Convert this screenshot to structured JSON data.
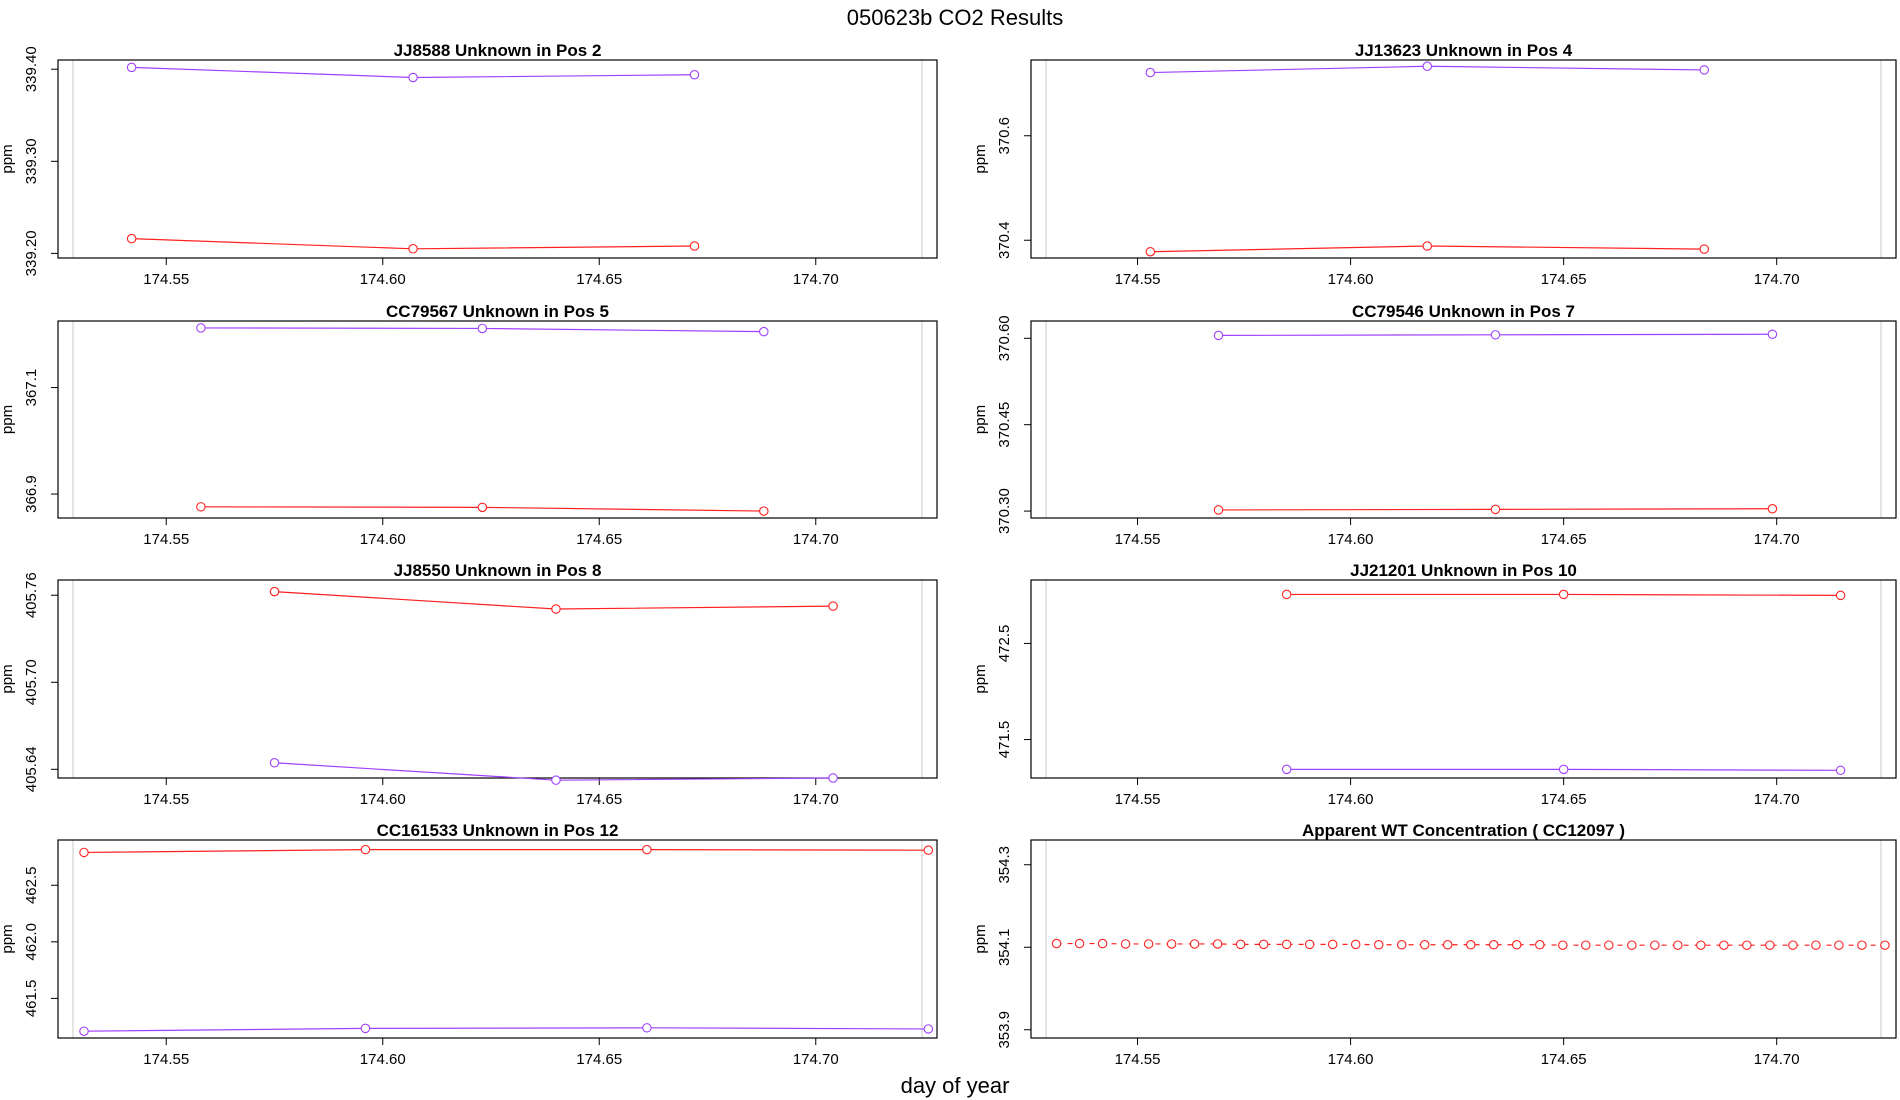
{
  "figure": {
    "title": "050623b  CO2 Results",
    "xlabel": "day of year",
    "colors": {
      "red": "#ff2020",
      "purple": "#a040ff",
      "axis": "#000000",
      "guide": "#c8c8c8"
    }
  },
  "chart_data": [
    {
      "type": "line",
      "title": "JJ8588    Unknown in Pos 2",
      "ylabel": "ppm",
      "xlim": [
        174.525,
        174.728
      ],
      "ylim": [
        339.195,
        339.41
      ],
      "xticks": [
        174.55,
        174.6,
        174.65,
        174.7
      ],
      "xtick_labels": [
        "174.55",
        "174.60",
        "174.65",
        "174.70"
      ],
      "yticks": [
        339.2,
        339.3,
        339.4
      ],
      "ytick_labels": [
        "339.20",
        "339.30",
        "339.40"
      ],
      "series": [
        {
          "color": "purple",
          "x": [
            174.542,
            174.607,
            174.672
          ],
          "y": [
            339.402,
            339.391,
            339.394
          ]
        },
        {
          "color": "red",
          "x": [
            174.542,
            174.607,
            174.672
          ],
          "y": [
            339.216,
            339.205,
            339.208
          ]
        }
      ]
    },
    {
      "type": "line",
      "title": "JJ13623    Unknown in Pos 4",
      "ylabel": "ppm",
      "xlim": [
        174.525,
        174.728
      ],
      "ylim": [
        370.366,
        370.745
      ],
      "xticks": [
        174.55,
        174.6,
        174.65,
        174.7
      ],
      "xtick_labels": [
        "174.55",
        "174.60",
        "174.65",
        "174.70"
      ],
      "yticks": [
        370.4,
        370.6
      ],
      "ytick_labels": [
        "370.4",
        "370.6"
      ],
      "series": [
        {
          "color": "purple",
          "x": [
            174.553,
            174.618,
            174.683
          ],
          "y": [
            370.721,
            370.733,
            370.726
          ]
        },
        {
          "color": "red",
          "x": [
            174.553,
            174.618,
            174.683
          ],
          "y": [
            370.378,
            370.389,
            370.383
          ]
        }
      ]
    },
    {
      "type": "line",
      "title": "CC79567    Unknown in Pos 5",
      "ylabel": "ppm",
      "xlim": [
        174.525,
        174.728
      ],
      "ylim": [
        366.855,
        367.225
      ],
      "xticks": [
        174.55,
        174.6,
        174.65,
        174.7
      ],
      "xtick_labels": [
        "174.55",
        "174.60",
        "174.65",
        "174.70"
      ],
      "yticks": [
        366.9,
        367.1
      ],
      "ytick_labels": [
        "366.9",
        "367.1"
      ],
      "series": [
        {
          "color": "purple",
          "x": [
            174.558,
            174.623,
            174.688
          ],
          "y": [
            367.212,
            367.211,
            367.205
          ]
        },
        {
          "color": "red",
          "x": [
            174.558,
            174.623,
            174.688
          ],
          "y": [
            366.876,
            366.875,
            366.868
          ]
        }
      ]
    },
    {
      "type": "line",
      "title": "CC79546    Unknown in Pos 7",
      "ylabel": "ppm",
      "xlim": [
        174.525,
        174.728
      ],
      "ylim": [
        370.288,
        370.63
      ],
      "xticks": [
        174.55,
        174.6,
        174.65,
        174.7
      ],
      "xtick_labels": [
        "174.55",
        "174.60",
        "174.65",
        "174.70"
      ],
      "yticks": [
        370.3,
        370.45,
        370.6
      ],
      "ytick_labels": [
        "370.30",
        "370.45",
        "370.60"
      ],
      "series": [
        {
          "color": "purple",
          "x": [
            174.569,
            174.634,
            174.699
          ],
          "y": [
            370.605,
            370.606,
            370.607
          ]
        },
        {
          "color": "red",
          "x": [
            174.569,
            174.634,
            174.699
          ],
          "y": [
            370.302,
            370.303,
            370.304
          ]
        }
      ]
    },
    {
      "type": "line",
      "title": "JJ8550    Unknown in Pos 8",
      "ylabel": "ppm",
      "xlim": [
        174.525,
        174.728
      ],
      "ylim": [
        405.634,
        405.7705
      ],
      "xticks": [
        174.55,
        174.6,
        174.65,
        174.7
      ],
      "xtick_labels": [
        "174.55",
        "174.60",
        "174.65",
        "174.70"
      ],
      "yticks": [
        405.64,
        405.7,
        405.76
      ],
      "ytick_labels": [
        "405.64",
        "405.70",
        "405.76"
      ],
      "series": [
        {
          "color": "red",
          "x": [
            174.575,
            174.64,
            174.704
          ],
          "y": [
            405.7625,
            405.7505,
            405.7525
          ]
        },
        {
          "color": "purple",
          "x": [
            174.575,
            174.64,
            174.704
          ],
          "y": [
            405.6445,
            405.6325,
            405.634
          ]
        }
      ]
    },
    {
      "type": "line",
      "title": "JJ21201    Unknown in Pos 10",
      "ylabel": "ppm",
      "xlim": [
        174.525,
        174.728
      ],
      "ylim": [
        471.1,
        473.16
      ],
      "xticks": [
        174.55,
        174.6,
        174.65,
        174.7
      ],
      "xtick_labels": [
        "174.55",
        "174.60",
        "174.65",
        "174.70"
      ],
      "yticks": [
        471.5,
        472.5
      ],
      "ytick_labels": [
        "471.5",
        "472.5"
      ],
      "series": [
        {
          "color": "red",
          "x": [
            174.585,
            174.65,
            174.715
          ],
          "y": [
            473.01,
            473.01,
            473.0
          ]
        },
        {
          "color": "purple",
          "x": [
            174.585,
            174.65,
            174.715
          ],
          "y": [
            471.19,
            471.19,
            471.18
          ]
        }
      ]
    },
    {
      "type": "line",
      "title": "CC161533    Unknown in Pos 12",
      "ylabel": "ppm",
      "xlim": [
        174.525,
        174.728
      ],
      "ylim": [
        461.15,
        462.9
      ],
      "xticks": [
        174.55,
        174.6,
        174.65,
        174.7
      ],
      "xtick_labels": [
        "174.55",
        "174.60",
        "174.65",
        "174.70"
      ],
      "yticks": [
        461.5,
        462.0,
        462.5
      ],
      "ytick_labels": [
        "461.5",
        "462.0",
        "462.5"
      ],
      "series": [
        {
          "color": "red",
          "x": [
            174.531,
            174.596,
            174.661,
            174.726
          ],
          "y": [
            462.79,
            462.815,
            462.815,
            462.81
          ]
        },
        {
          "color": "purple",
          "x": [
            174.531,
            174.596,
            174.661,
            174.726
          ],
          "y": [
            461.21,
            461.235,
            461.24,
            461.23
          ]
        }
      ]
    },
    {
      "type": "line",
      "style": "dashed",
      "title": "Apparent WT Concentration ( CC12097 )",
      "ylabel": "ppm",
      "xlim": [
        174.525,
        174.728
      ],
      "ylim": [
        353.88,
        354.36
      ],
      "xticks": [
        174.55,
        174.6,
        174.65,
        174.7
      ],
      "xtick_labels": [
        "174.55",
        "174.60",
        "174.65",
        "174.70"
      ],
      "yticks": [
        353.9,
        354.1,
        354.3
      ],
      "ytick_labels": [
        "353.9",
        "354.1",
        "354.3"
      ],
      "series": [
        {
          "color": "red",
          "x": [
            174.531,
            174.5364,
            174.5418,
            174.5472,
            174.5526,
            174.558,
            174.5634,
            174.5688,
            174.5742,
            174.5796,
            174.585,
            174.5904,
            174.5958,
            174.6012,
            174.6066,
            174.612,
            174.6174,
            174.6228,
            174.6282,
            174.6336,
            174.639,
            174.6444,
            174.6498,
            174.6552,
            174.6606,
            174.666,
            174.6714,
            174.6768,
            174.6822,
            174.6876,
            174.693,
            174.6984,
            174.7038,
            174.7092,
            174.7146,
            174.72,
            174.7254
          ],
          "y": [
            354.109,
            354.109,
            354.109,
            354.108,
            354.108,
            354.108,
            354.108,
            354.108,
            354.107,
            354.107,
            354.107,
            354.107,
            354.107,
            354.107,
            354.106,
            354.106,
            354.106,
            354.106,
            354.106,
            354.106,
            354.106,
            354.106,
            354.105,
            354.105,
            354.105,
            354.105,
            354.105,
            354.105,
            354.105,
            354.105,
            354.105,
            354.105,
            354.105,
            354.105,
            354.105,
            354.105,
            354.105
          ]
        }
      ]
    }
  ]
}
